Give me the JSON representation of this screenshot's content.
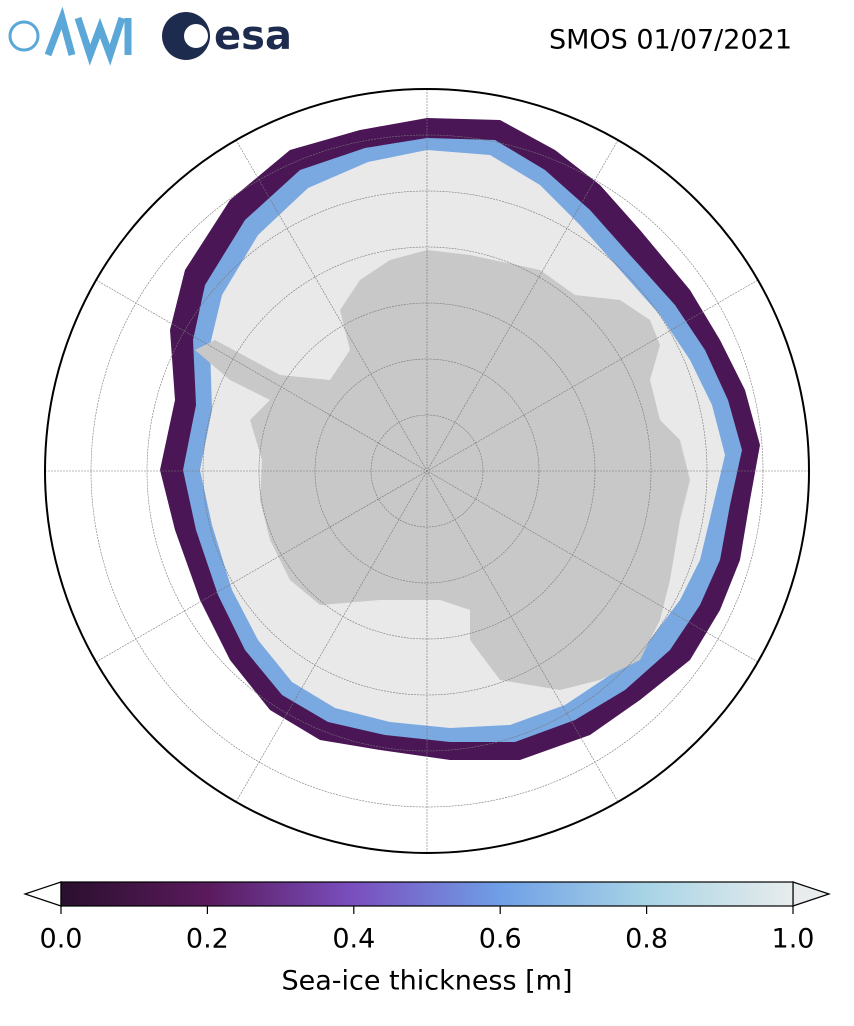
{
  "logos": [
    "esa"
  ],
  "title": "SMOS 01/07/2021",
  "colorbar": {
    "label": "Sea-ice thickness [m]",
    "lim": [
      0,
      1
    ],
    "ticks": [
      {
        "value": 0,
        "label": "0.0"
      },
      {
        "value": 0.2,
        "label": "0.2"
      },
      {
        "value": 0.4,
        "label": "0.4"
      },
      {
        "value": 0.6,
        "label": "0.6"
      },
      {
        "value": 0.8,
        "label": "0.8"
      },
      {
        "value": 1,
        "label": "1.0"
      }
    ],
    "colors": [
      "#2a0f2e",
      "#5a1a5c",
      "#7a4fbf",
      "#6f9fe6",
      "#a8d4e6",
      "#e8ecec"
    ]
  }
}
